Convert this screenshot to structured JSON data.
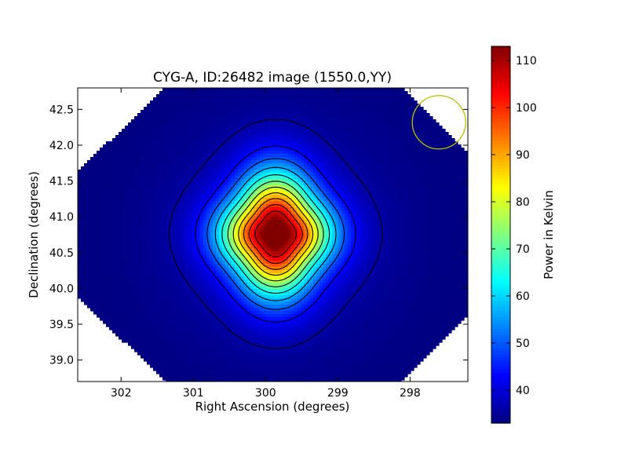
{
  "chart_data": {
    "type": "heatmap",
    "title": "CYG-A, ID:26482 image (1550.0,YY)",
    "xlabel": "Right Ascension (degrees)",
    "ylabel": "Declination (degrees)",
    "xlim": [
      302.6,
      297.2
    ],
    "ylim": [
      38.7,
      42.8
    ],
    "x_ticks": [
      302,
      301,
      300,
      299,
      298
    ],
    "y_ticks": [
      39.0,
      39.5,
      40.0,
      40.5,
      41.0,
      41.5,
      42.0,
      42.5
    ],
    "x_tick_labels": [
      "302",
      "301",
      "300",
      "299",
      "298"
    ],
    "y_tick_labels": [
      "39.0",
      "39.5",
      "40.0",
      "40.5",
      "41.0",
      "41.5",
      "42.0",
      "42.5"
    ],
    "colorbar": {
      "label": "Power in Kelvin",
      "colormap": "jet",
      "range": [
        33,
        113
      ],
      "ticks": [
        40,
        50,
        60,
        70,
        80,
        90,
        100,
        110
      ],
      "tick_labels": [
        "40",
        "50",
        "60",
        "70",
        "80",
        "90",
        "100",
        "110"
      ]
    },
    "source_peak": {
      "ra": 299.86,
      "dec": 40.76,
      "value": 113
    },
    "background_value": 33,
    "contour_levels": [
      36,
      43,
      50,
      57,
      64,
      71,
      78,
      85,
      92,
      99,
      106
    ],
    "beam_marker": {
      "ra": 297.6,
      "dec": 42.32,
      "color": "#bfbf00"
    },
    "grid": false
  }
}
